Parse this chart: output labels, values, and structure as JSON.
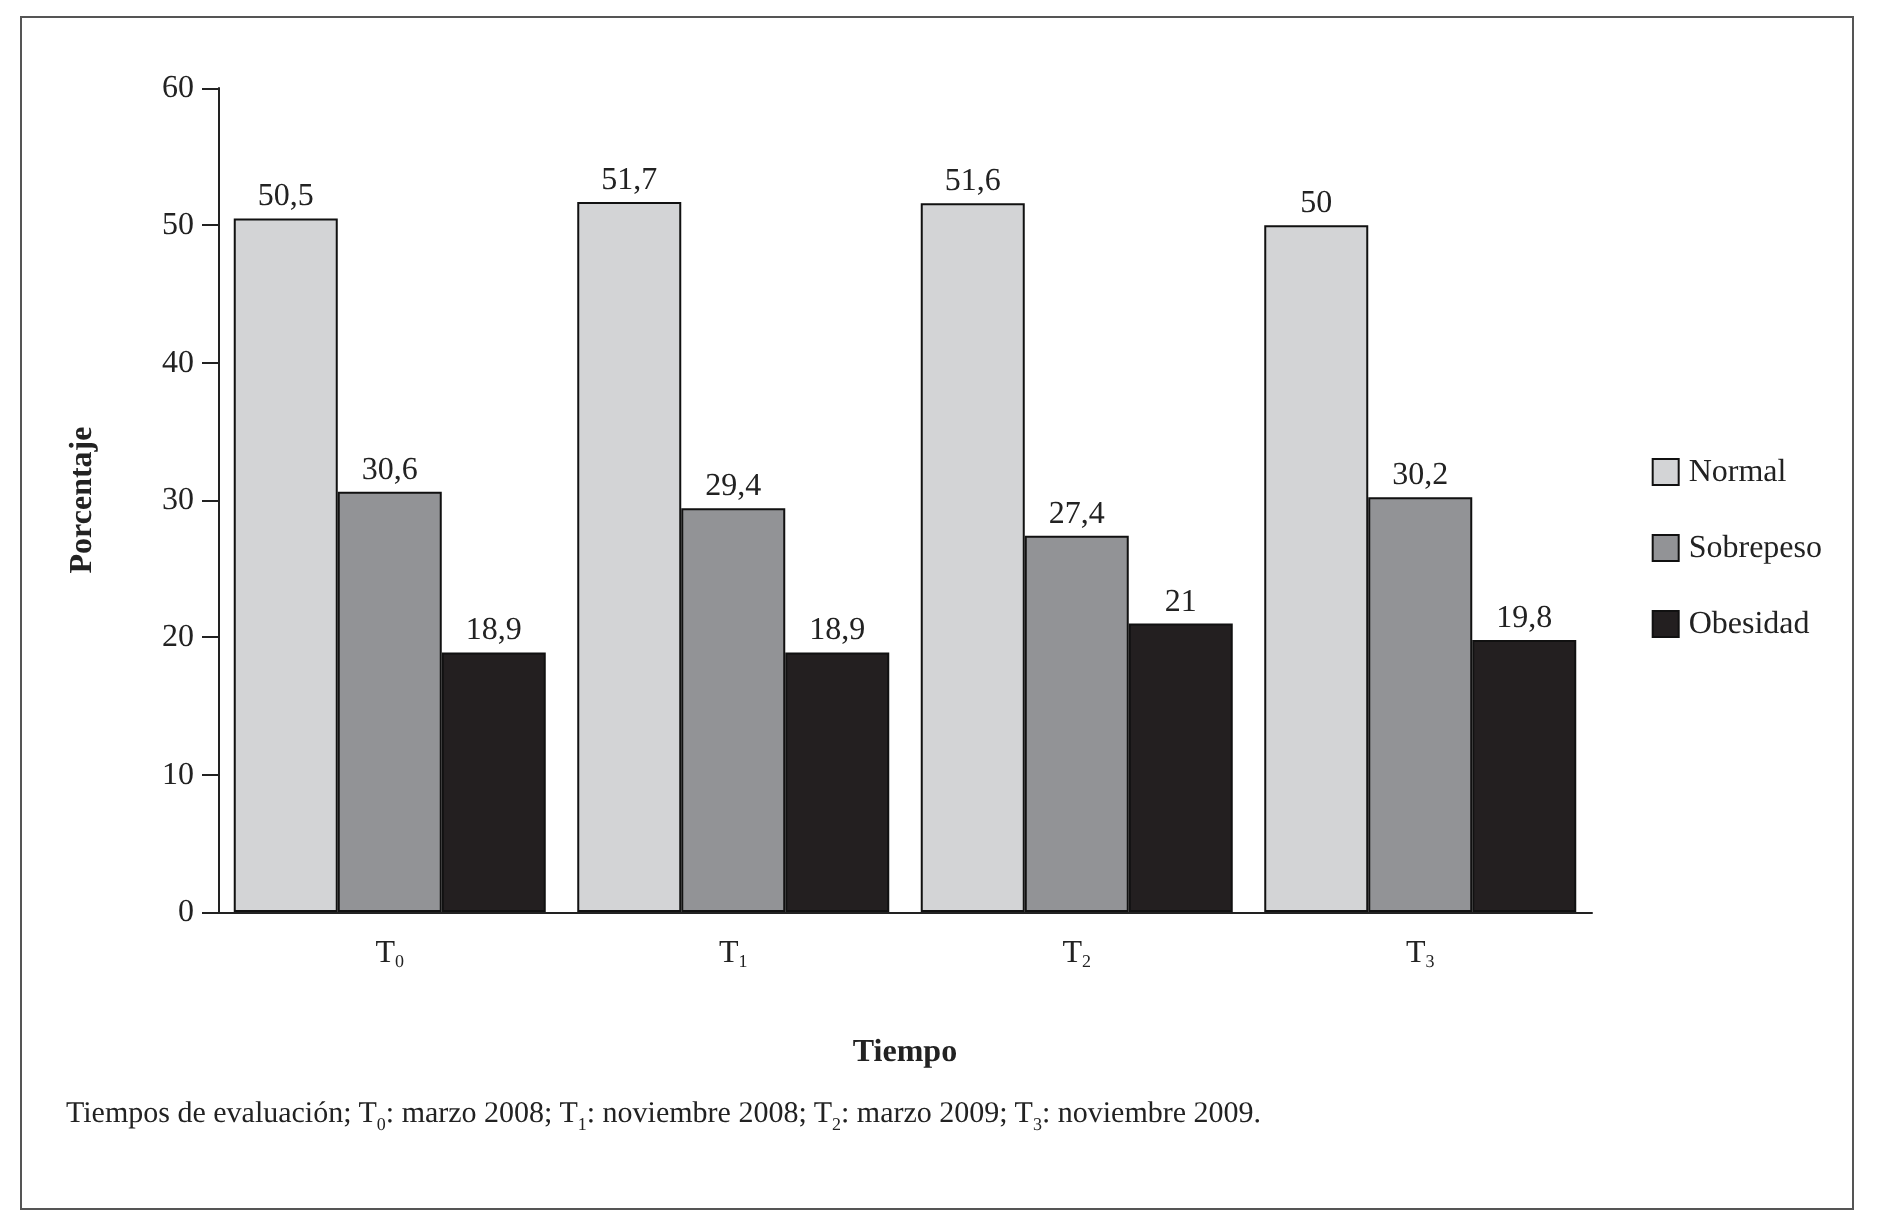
{
  "chart_data": {
    "type": "bar",
    "xlabel": "Tiempo",
    "ylabel": "Porcentaje",
    "categories": [
      "T$_{0}$",
      "T$_{1}$",
      "T$_{2}$",
      "T$_{3}$"
    ],
    "series": [
      {
        "name": "Normal",
        "color": "#d3d4d6",
        "values": [
          50.5,
          51.7,
          51.6,
          50
        ],
        "value_labels": [
          "50,5",
          "51,7",
          "51,6",
          "50"
        ]
      },
      {
        "name": "Sobrepeso",
        "color": "#929396",
        "values": [
          30.6,
          29.4,
          27.4,
          30.2
        ],
        "value_labels": [
          "30,6",
          "29,4",
          "27,4",
          "30,2"
        ]
      },
      {
        "name": "Obesidad",
        "color": "#231f20",
        "values": [
          18.9,
          18.9,
          21,
          19.8
        ],
        "value_labels": [
          "18,9",
          "18,9",
          "21",
          "19,8"
        ]
      }
    ],
    "ylim": [
      0,
      60
    ],
    "yticks": [
      0,
      10,
      20,
      30,
      40,
      50,
      60
    ],
    "grid": false,
    "legend": "right",
    "annotations": [
      "Tiempos de evaluación; T$_{0}$: marzo 2008; T$_{1}$: noviembre 2008; T$_{2}$: marzo 2009; T$_{3}$: noviembre 2009."
    ]
  }
}
